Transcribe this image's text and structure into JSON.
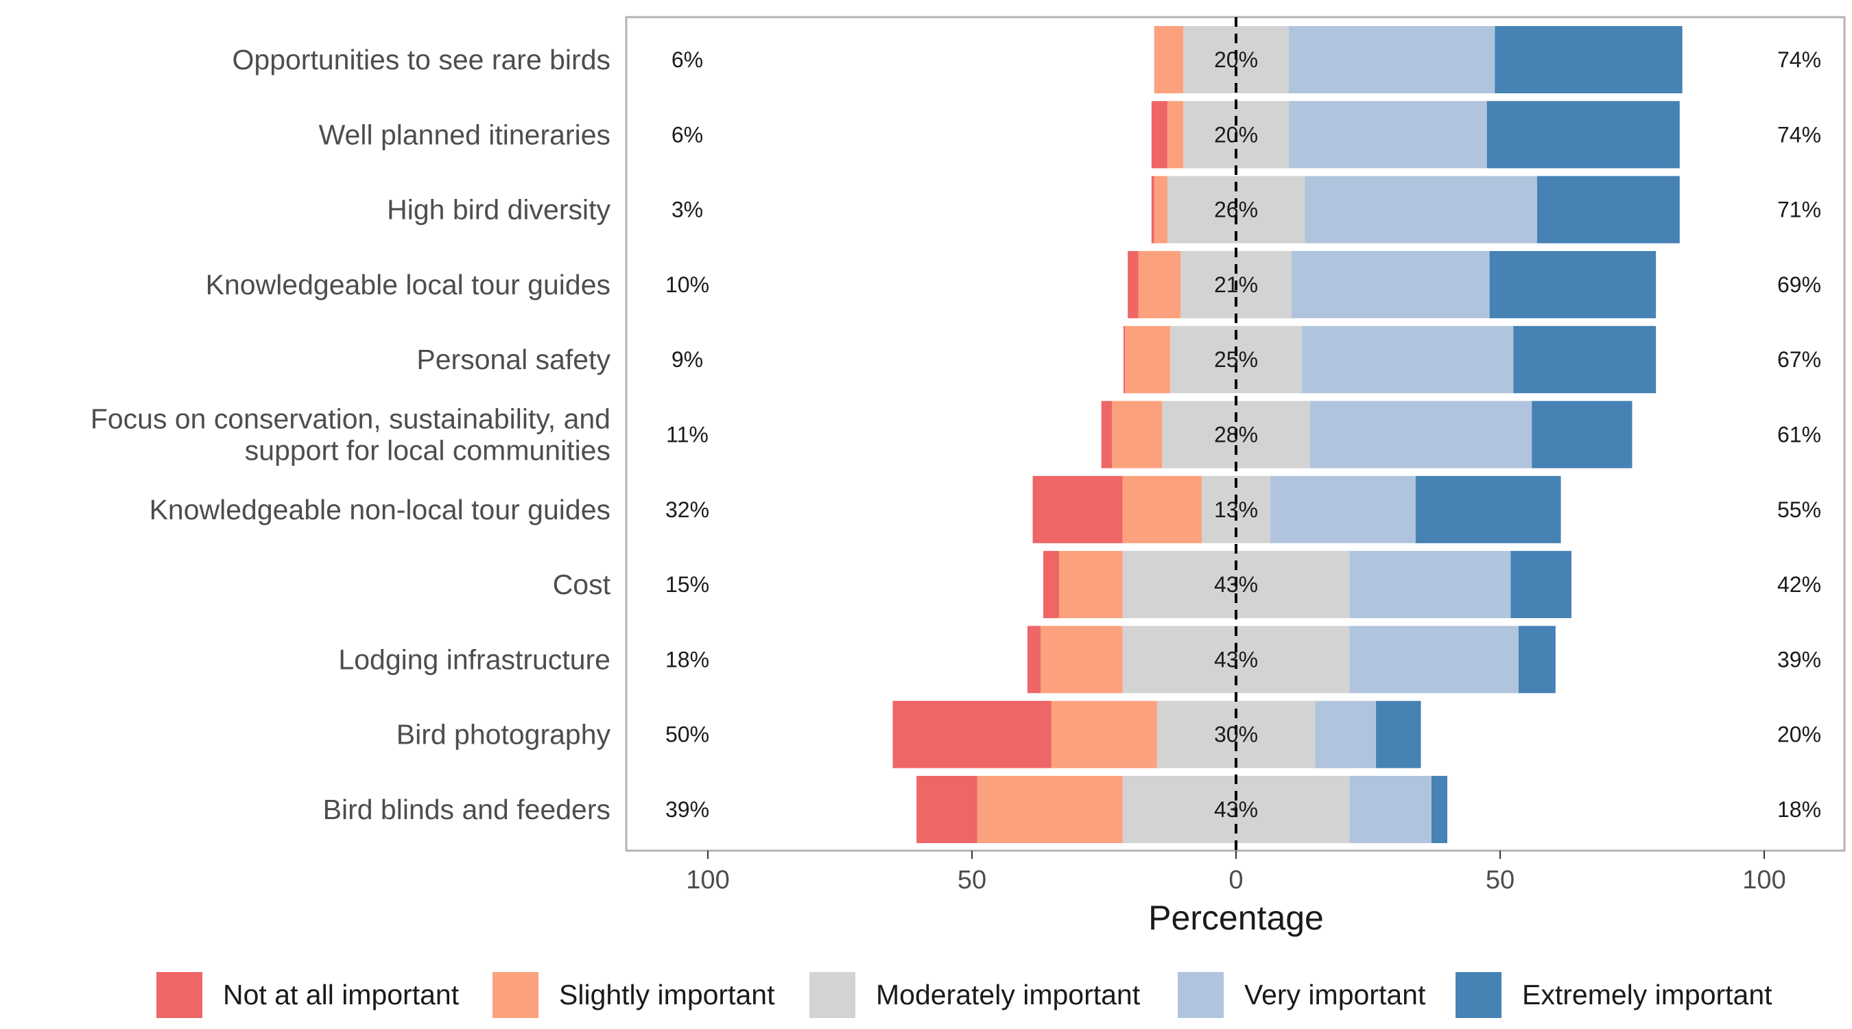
{
  "chart_data": {
    "type": "bar",
    "orientation": "horizontal",
    "layout": "diverging-stacked",
    "xlabel": "Percentage",
    "xticks": [
      "100",
      "50",
      "0",
      "50",
      "100"
    ],
    "xlim": [
      -100,
      100
    ],
    "center_line": "dashed at 0",
    "legend_placement": "bottom",
    "categories": [
      "Opportunities to see rare birds",
      "Well planned itineraries",
      "High bird diversity",
      "Knowledgeable local tour guides",
      "Personal safety",
      "Focus on conservation, sustainability, and support for local communities",
      "Knowledgeable non-local tour guides",
      "Cost",
      "Lodging infrastructure",
      "Bird photography",
      "Bird blinds and feeders"
    ],
    "category_lines": [
      [
        "Opportunities to see rare birds"
      ],
      [
        "Well planned itineraries"
      ],
      [
        "High bird diversity"
      ],
      [
        "Knowledgeable local tour guides"
      ],
      [
        "Personal safety"
      ],
      [
        "Focus on conservation, sustainability, and",
        "support for local communities"
      ],
      [
        "Knowledgeable non-local tour guides"
      ],
      [
        "Cost"
      ],
      [
        "Lodging infrastructure"
      ],
      [
        "Bird photography"
      ],
      [
        "Bird blinds and feeders"
      ]
    ],
    "series": [
      {
        "name": "Not at all important",
        "color": "#ee6666",
        "values": [
          0,
          3,
          0.5,
          2,
          0.3,
          2,
          17,
          3,
          2.5,
          30,
          11.5
        ]
      },
      {
        "name": "Slightly important",
        "color": "#fca17d",
        "values": [
          5.5,
          3,
          2.5,
          8,
          8.5,
          9.5,
          15,
          12,
          15.5,
          20,
          27.5
        ]
      },
      {
        "name": "Moderately important",
        "color": "#d3d3d3",
        "values": [
          20,
          20,
          26,
          21,
          25,
          28,
          13,
          43,
          43,
          30,
          43
        ]
      },
      {
        "name": "Very important",
        "color": "#b0c4de",
        "values": [
          39,
          37.5,
          44,
          37.5,
          40,
          42,
          27.5,
          30.5,
          32,
          11.5,
          15.5
        ]
      },
      {
        "name": "Extremely important",
        "color": "#4682b4",
        "values": [
          35.5,
          36.5,
          27,
          31.5,
          27,
          19,
          27.5,
          11.5,
          7,
          8.5,
          3
        ]
      }
    ],
    "left_totals": [
      "6%",
      "6%",
      "3%",
      "10%",
      "9%",
      "11%",
      "32%",
      "15%",
      "18%",
      "50%",
      "39%"
    ],
    "center_totals": [
      "20%",
      "20%",
      "26%",
      "21%",
      "25%",
      "28%",
      "13%",
      "43%",
      "43%",
      "30%",
      "43%"
    ],
    "right_totals": [
      "74%",
      "74%",
      "71%",
      "69%",
      "67%",
      "61%",
      "55%",
      "42%",
      "39%",
      "20%",
      "18%"
    ]
  }
}
